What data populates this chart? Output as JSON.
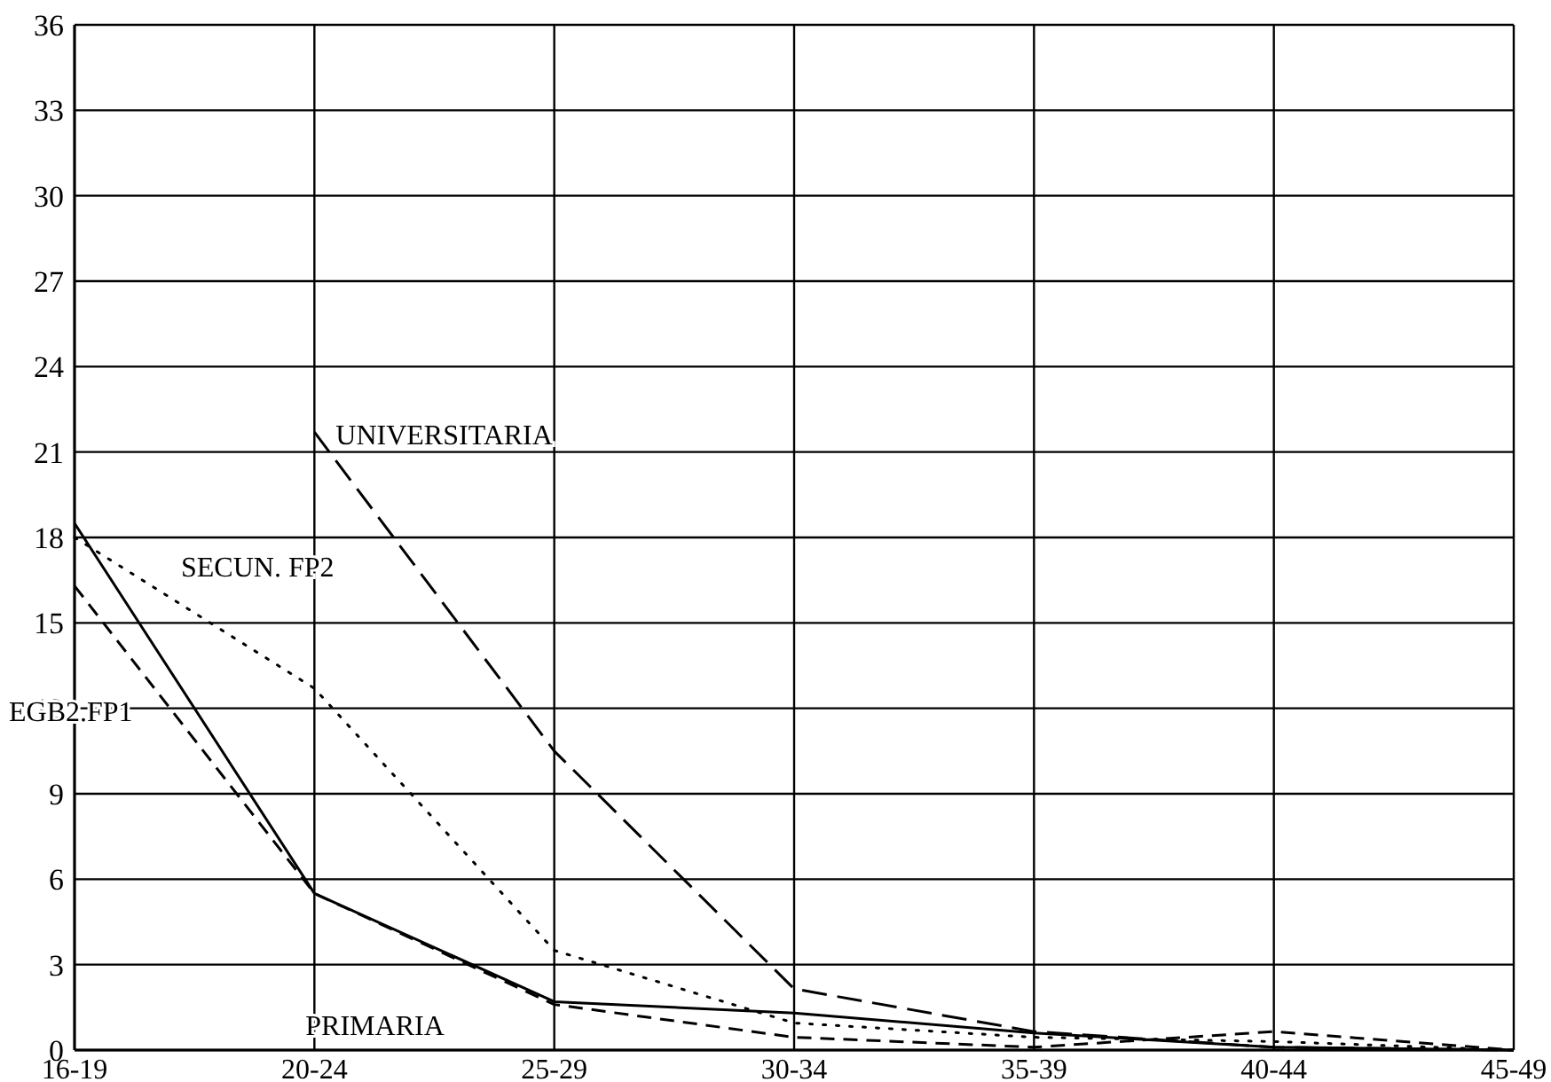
{
  "chart_data": {
    "type": "line",
    "categories": [
      "16-19",
      "20-24",
      "25-29",
      "30-34",
      "35-39",
      "40-44",
      "45-49"
    ],
    "series": [
      {
        "name": "PRIMARIA",
        "color": "#000000",
        "line_style": "solid",
        "values": [
          18.5,
          5.5,
          1.7,
          1.3,
          0.6,
          0.1,
          0
        ]
      },
      {
        "name": "EGB2.FP1",
        "color": "#000000",
        "line_style": "dashed",
        "values": [
          16.3,
          5.5,
          1.6,
          0.45,
          0.1,
          0.65,
          0
        ]
      },
      {
        "name": "SECUN. FP2",
        "color": "#000000",
        "line_style": "dotted",
        "values": [
          18.0,
          12.7,
          3.5,
          0.95,
          0.45,
          0.3,
          0
        ]
      },
      {
        "name": "UNIVERSITARIA",
        "color": "#000000",
        "line_style": "longdash",
        "values": [
          null,
          21.7,
          10.5,
          2.15,
          0.65,
          0.1,
          0
        ]
      }
    ],
    "ylim": [
      0,
      36
    ],
    "yticks": [
      0,
      3,
      6,
      9,
      12,
      15,
      18,
      21,
      24,
      27,
      30,
      33,
      36
    ],
    "grid": true,
    "legend": false,
    "marker": "none"
  }
}
